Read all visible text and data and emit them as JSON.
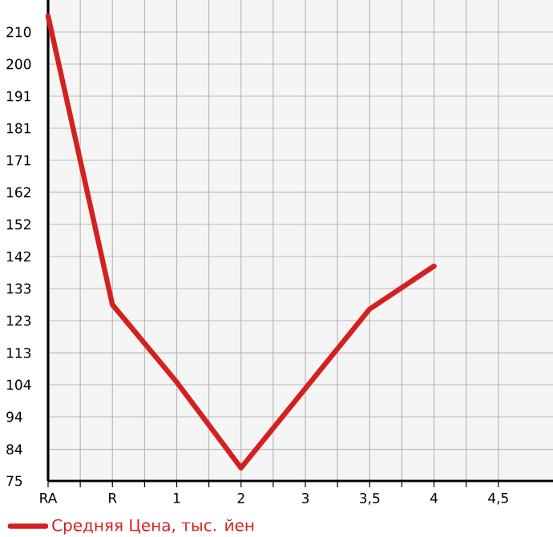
{
  "chart_data": {
    "type": "line",
    "categories": [
      "RA",
      "R",
      "1",
      "2",
      "3",
      "3,5",
      "4",
      "4,5"
    ],
    "series": [
      {
        "name": "Средняя Цена, тыс. йен",
        "color": "#d42020",
        "values": [
          214.8,
          128.0,
          104.7,
          78.9,
          102.8,
          126.7,
          139.6,
          null
        ]
      }
    ],
    "ylim": [
      75,
      219.64
    ],
    "yticks": [
      75,
      {
        "value": 84.49,
        "label": "84"
      },
      {
        "value": 94.29,
        "label": "94"
      },
      {
        "value": 103.93,
        "label": "104"
      },
      {
        "value": 113.49,
        "label": "113"
      },
      {
        "value": 123.21,
        "label": "123"
      },
      {
        "value": 132.86,
        "label": "133"
      },
      {
        "value": 142.5,
        "label": "142"
      },
      {
        "value": 152.14,
        "label": "152"
      },
      {
        "value": 161.79,
        "label": "162"
      },
      {
        "value": 171.43,
        "label": "171"
      },
      {
        "value": 181.07,
        "label": "181"
      },
      {
        "value": 190.71,
        "label": "191"
      },
      {
        "value": 200.36,
        "label": "200"
      },
      210
    ],
    "grid": true,
    "legend": "bottom",
    "marker": "none",
    "line_style": "solid"
  }
}
